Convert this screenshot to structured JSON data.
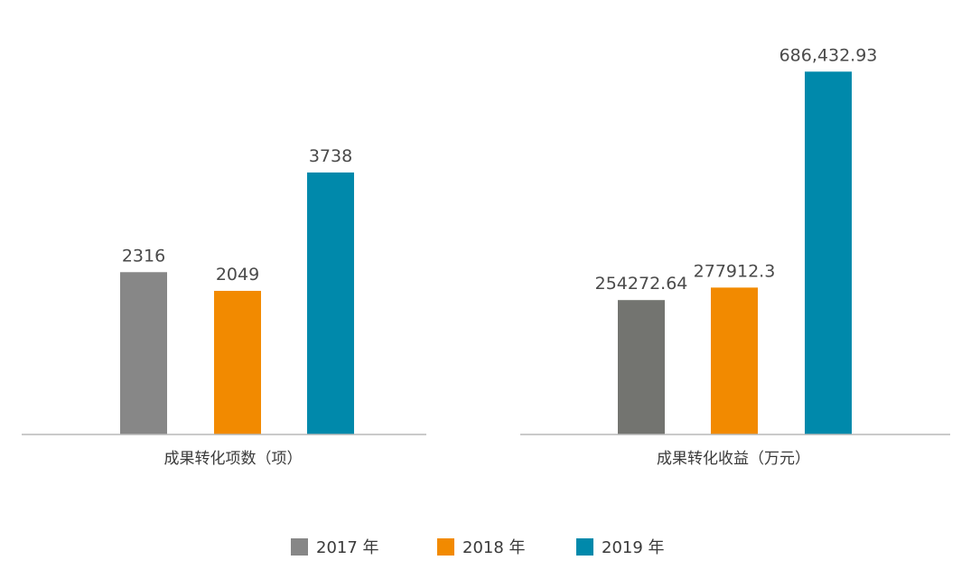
{
  "chart_data": [
    {
      "type": "bar",
      "xlabel": "成果转化项数（项）",
      "series": [
        {
          "name": "2017 年",
          "value": 2316,
          "label": "2316",
          "color": "#878787"
        },
        {
          "name": "2018 年",
          "value": 2049,
          "label": "2049",
          "color": "#f28a00"
        },
        {
          "name": "2019 年",
          "value": 3738,
          "label": "3738",
          "color": "#0089ab"
        }
      ],
      "ylim": [
        0,
        5400
      ]
    },
    {
      "type": "bar",
      "xlabel": "成果转化收益（万元）",
      "series": [
        {
          "name": "2017 年",
          "value": 254272.64,
          "label": "254272.64",
          "color": "#737470"
        },
        {
          "name": "2018 年",
          "value": 277912.3,
          "label": "277912.3",
          "color": "#f28a00"
        },
        {
          "name": "2019 年",
          "value": 686432.93,
          "label": "686,432.93",
          "color": "#0089ab"
        }
      ],
      "ylim": [
        0,
        716000
      ]
    }
  ],
  "legend": {
    "placement": "bottom",
    "items": [
      {
        "label": "2017 年",
        "color": "#878787"
      },
      {
        "label": "2018 年",
        "color": "#f28a00"
      },
      {
        "label": "2019 年",
        "color": "#0089ab"
      }
    ]
  }
}
